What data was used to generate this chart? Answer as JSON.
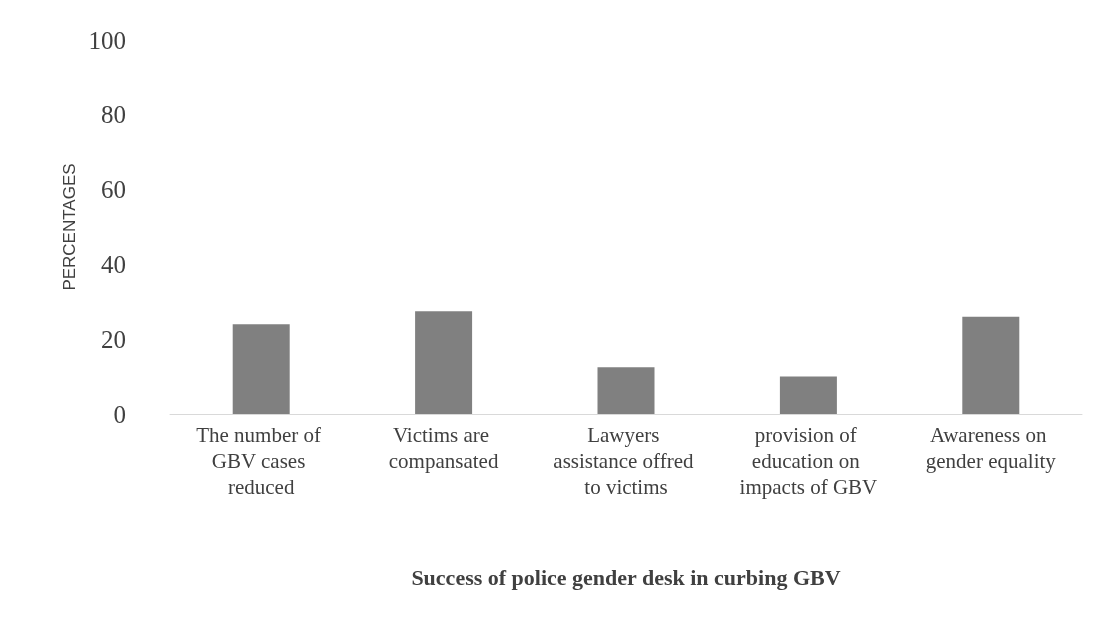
{
  "chart_data": {
    "type": "bar",
    "xlabel": "Success of police gender desk in curbing GBV",
    "ylabel": "PERCENTAGES",
    "categories": [
      "The number of GBV cases reduced",
      "Victims are compansated",
      "Lawyers assistance offred to victims",
      "provision of education on impacts of GBV",
      "Awareness on gender equality"
    ],
    "values": [
      24,
      27.5,
      12.5,
      10,
      26
    ],
    "color": "#808080",
    "ylim": [
      0,
      100
    ],
    "yticks": [
      0,
      20,
      40,
      60,
      80,
      100
    ],
    "grid": false
  }
}
